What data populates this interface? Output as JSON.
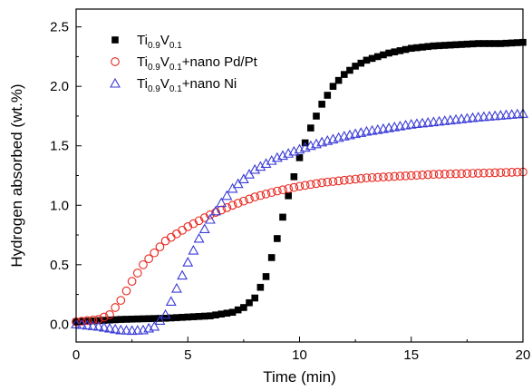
{
  "chart_data": {
    "type": "scatter",
    "xlabel": "Time (min)",
    "ylabel": "Hydrogen absorbed (wt.%)",
    "xlim": [
      0,
      20
    ],
    "ylim": [
      -0.15,
      2.65
    ],
    "x_ticks": [
      0,
      5,
      10,
      15,
      20
    ],
    "y_ticks": [
      0.0,
      0.5,
      1.0,
      1.5,
      2.0,
      2.5
    ],
    "x_tick_labels": [
      "0",
      "5",
      "10",
      "15",
      "20"
    ],
    "y_tick_labels": [
      "0.0",
      "0.5",
      "1.0",
      "1.5",
      "2.0",
      "2.5"
    ],
    "legend_position": "top-left",
    "grid": false,
    "series": [
      {
        "id": "s1",
        "legend": {
          "base": "Ti",
          "sub1": "0.9",
          "mid": "V",
          "sub2": "0.1",
          "suffix": ""
        },
        "marker": "square-filled",
        "color": "#000000",
        "x": [
          0,
          1,
          2,
          3,
          4,
          5,
          6,
          7,
          7.5,
          8,
          8.5,
          9,
          9.5,
          10,
          10.5,
          11,
          11.5,
          12,
          12.5,
          13,
          14,
          15,
          16,
          17,
          18,
          19,
          20
        ],
        "y": [
          0.02,
          0.03,
          0.04,
          0.045,
          0.05,
          0.06,
          0.07,
          0.1,
          0.14,
          0.22,
          0.4,
          0.72,
          1.08,
          1.4,
          1.65,
          1.85,
          2.0,
          2.1,
          2.17,
          2.22,
          2.28,
          2.32,
          2.34,
          2.35,
          2.36,
          2.36,
          2.37
        ]
      },
      {
        "id": "s2",
        "legend": {
          "base": "Ti",
          "sub1": "0.9",
          "mid": "V",
          "sub2": "0.1",
          "suffix": "+nano Pd/Pt"
        },
        "marker": "circle-open",
        "color": "#e8271f",
        "x": [
          0,
          1,
          1.5,
          2,
          2.5,
          3,
          3.5,
          4,
          5,
          6,
          7,
          8,
          9,
          10,
          11,
          12,
          13,
          14,
          15,
          16,
          17,
          18,
          19,
          20
        ],
        "y": [
          0.02,
          0.04,
          0.08,
          0.2,
          0.36,
          0.5,
          0.6,
          0.7,
          0.82,
          0.92,
          1.0,
          1.07,
          1.12,
          1.16,
          1.19,
          1.21,
          1.23,
          1.24,
          1.25,
          1.26,
          1.265,
          1.27,
          1.275,
          1.28
        ]
      },
      {
        "id": "s3",
        "legend": {
          "base": "Ti",
          "sub1": "0.9",
          "mid": "V",
          "sub2": "0.1",
          "suffix": "+nano Ni"
        },
        "marker": "triangle-open",
        "color": "#3a3bd6",
        "x": [
          0,
          1,
          2,
          2.5,
          3,
          3.5,
          4,
          4.5,
          5,
          5.5,
          6,
          6.5,
          7,
          8,
          9,
          10,
          11,
          12,
          13,
          14,
          15,
          16,
          17,
          18,
          19,
          20
        ],
        "y": [
          0.0,
          -0.02,
          -0.05,
          -0.055,
          -0.05,
          -0.02,
          0.08,
          0.3,
          0.52,
          0.72,
          0.88,
          1.02,
          1.14,
          1.3,
          1.4,
          1.47,
          1.53,
          1.58,
          1.62,
          1.65,
          1.68,
          1.7,
          1.72,
          1.74,
          1.755,
          1.77
        ]
      }
    ]
  }
}
